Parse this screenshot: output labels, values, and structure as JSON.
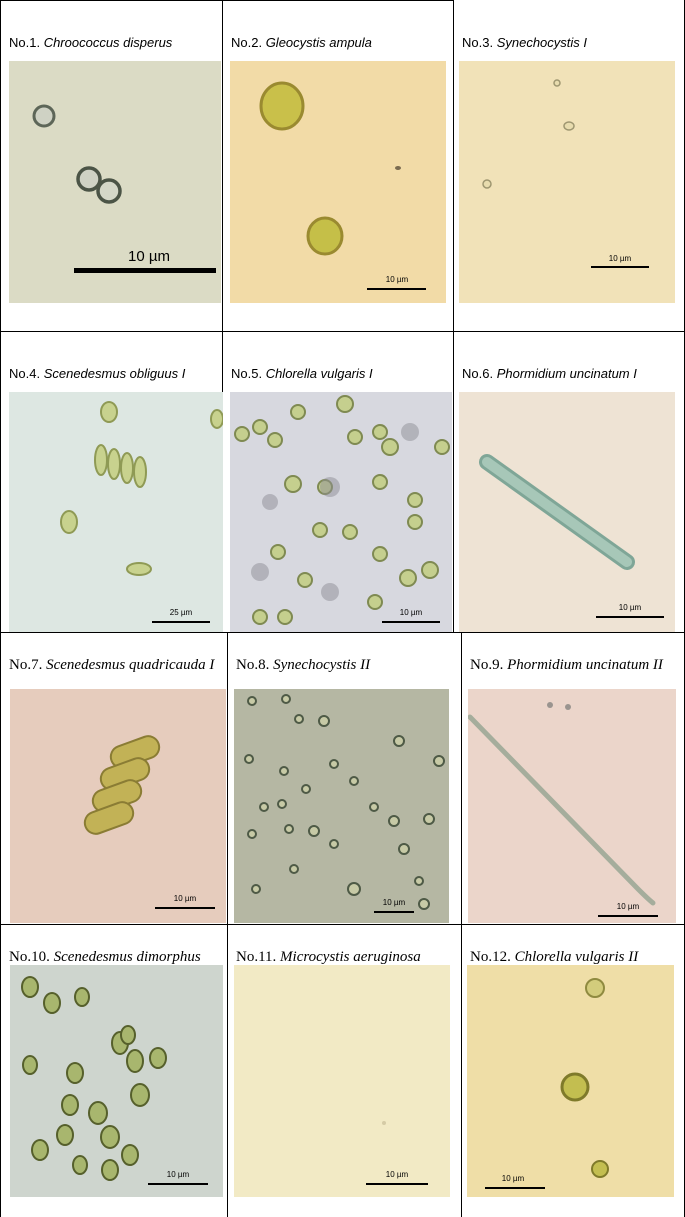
{
  "panels": [
    {
      "num": "No.1. ",
      "species": "Chroococcus disperus",
      "scale": "10 µm",
      "bg": "#dcdcc6"
    },
    {
      "num": "No.2. ",
      "species": "Gleocystis ampula",
      "scale": "10 µm",
      "bg": "#f3dca8"
    },
    {
      "num": "No.3. ",
      "species": "Synechocystis I",
      "scale": "10 µm",
      "bg": "#f2e4ba"
    },
    {
      "num": "No.4. ",
      "species": "Scenedesmus obliguus I",
      "scale": "25 µm",
      "bg": "#dfe8e3"
    },
    {
      "num": "No.5. ",
      "species": "Chlorella vulgaris I",
      "scale": "10 µm",
      "bg": "#d8d9e0"
    },
    {
      "num": "No.6. ",
      "species": "Phormidium uncinatum I",
      "scale": "10 µm",
      "bg": "#efe4d5"
    },
    {
      "num": "No.7. ",
      "species": "Scenedesmus quadricauda I",
      "scale": "10 µm",
      "bg": "#e8cdbf"
    },
    {
      "num": "No.8. ",
      "species": "Synechocystis II",
      "scale": "10 µm",
      "bg": "#b6b8a4"
    },
    {
      "num": "No.9. ",
      "species": "Phormidium uncinatum II",
      "scale": "10 µm",
      "bg": "#ecd6cb"
    },
    {
      "num": "No.10. ",
      "species": "Scenedesmus dimorphus",
      "scale": "10 µm",
      "bg": "#cfd6cf"
    },
    {
      "num": "No.11. ",
      "species": "Microcystis aeruginosa",
      "scale": "10 µm",
      "bg": "#f3ebc6"
    },
    {
      "num": "No.12. ",
      "species": "Chlorella vulgaris II",
      "scale": "10 µm",
      "bg": "#f0dfa8"
    }
  ]
}
